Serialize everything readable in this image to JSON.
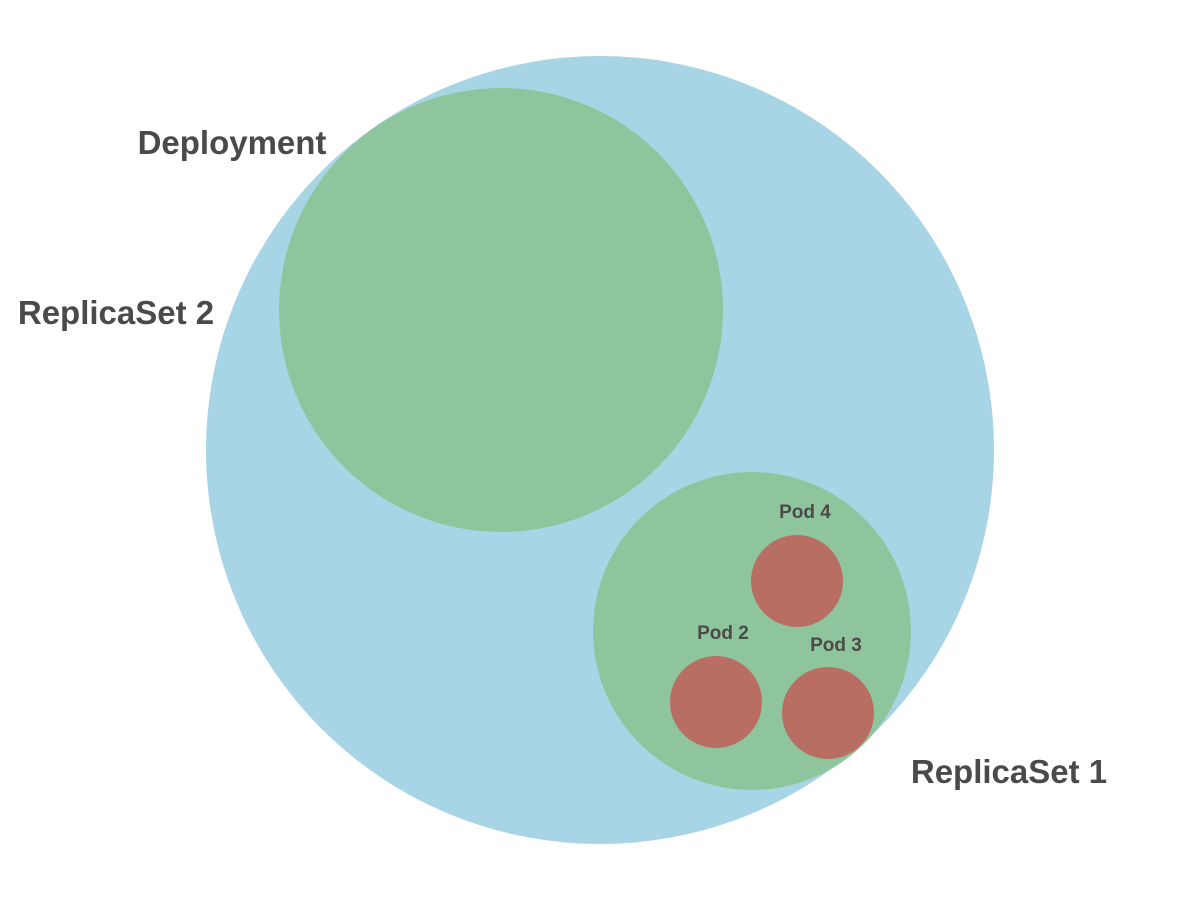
{
  "colors": {
    "deployment": "#a8d5e5",
    "replicaset": "#8fc59c",
    "pod": "#b86e63",
    "label": "#4a4a4a"
  },
  "labels": {
    "deployment": "Deployment",
    "replicaset_2": "ReplicaSet 2",
    "replicaset_1": "ReplicaSet 1",
    "pod_4": "Pod 4",
    "pod_2": "Pod 2",
    "pod_3": "Pod 3"
  }
}
